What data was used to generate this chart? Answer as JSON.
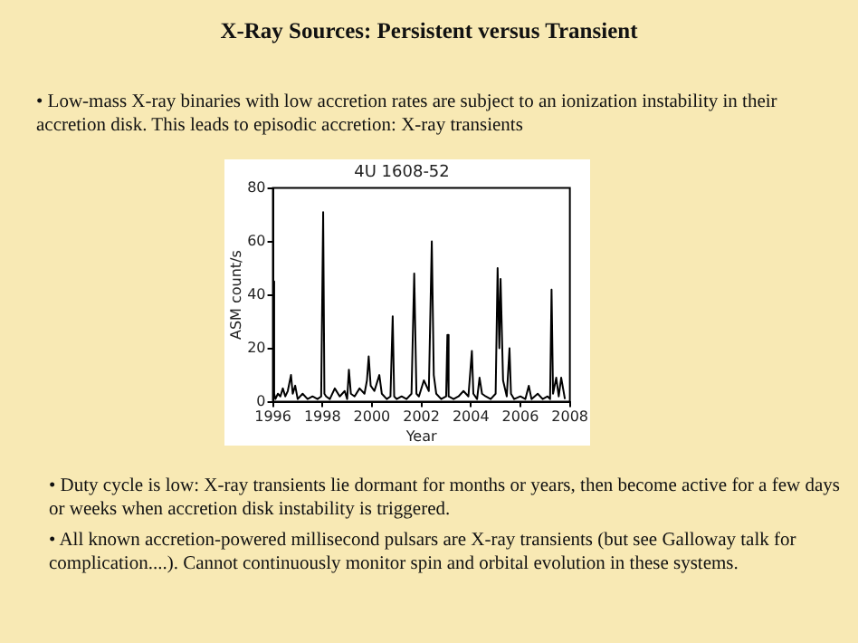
{
  "chart_data": {
    "type": "line",
    "title": "X-Ray Sources: Persistent versus Transient",
    "subtitle": "4U 1608-52",
    "xlabel": "Year",
    "ylabel": "ASM count/s",
    "annotations": [
      "• Low-mass X-ray binaries with low accretion rates are subject to an ionization instability in their accretion disk.   This leads to episodic accretion: X-ray transients",
      "• Duty cycle is low: X-ray transients lie dormant for months or years, then become active for a few days or weeks when accretion disk instability is triggered.",
      "• All known accretion-powered millisecond pulsars are X-ray transients (but see Galloway talk for complication....).    Cannot continuously monitor spin and orbital evolution in these systems."
    ],
    "series": [
      {
        "color": "#000000",
        "x": [
          1996.0,
          1996.02,
          1996.05,
          1996.1,
          1996.2,
          1996.3,
          1996.4,
          1996.5,
          1996.6,
          1996.73,
          1996.8,
          1996.9,
          1997.0,
          1997.2,
          1997.4,
          1997.6,
          1997.8,
          1997.95,
          1998.03,
          1998.08,
          1998.15,
          1998.3,
          1998.5,
          1998.7,
          1998.9,
          1999.0,
          1999.07,
          1999.15,
          1999.3,
          1999.5,
          1999.7,
          1999.8,
          1999.87,
          1999.95,
          2000.1,
          2000.3,
          2000.4,
          2000.6,
          2000.75,
          2000.84,
          2000.9,
          2001.0,
          2001.2,
          2001.4,
          2001.6,
          2001.71,
          2001.8,
          2001.9,
          2002.1,
          2002.3,
          2002.42,
          2002.5,
          2002.6,
          2002.8,
          2003.0,
          2003.05,
          2003.1,
          2003.3,
          2003.5,
          2003.7,
          2003.9,
          2004.04,
          2004.1,
          2004.25,
          2004.35,
          2004.45,
          2004.6,
          2004.8,
          2005.0,
          2005.08,
          2005.15,
          2005.2,
          2005.3,
          2005.45,
          2005.56,
          2005.62,
          2005.75,
          2006.0,
          2006.2,
          2006.34,
          2006.45,
          2006.7,
          2006.9,
          2007.1,
          2007.2,
          2007.26,
          2007.32,
          2007.45,
          2007.55,
          2007.65,
          2007.8
        ],
        "values": [
          2,
          45,
          3,
          1,
          3,
          2,
          5,
          2,
          4,
          10,
          3,
          6,
          1,
          3,
          1,
          2,
          1,
          2,
          71,
          3,
          2,
          1,
          5,
          2,
          4,
          1,
          12,
          3,
          2,
          5,
          3,
          8,
          17,
          6,
          4,
          10,
          3,
          1,
          2,
          32,
          2,
          1,
          2,
          1,
          3,
          48,
          3,
          2,
          8,
          4,
          60,
          10,
          3,
          1,
          2,
          25,
          2,
          1,
          2,
          4,
          2,
          19,
          3,
          1,
          9,
          3,
          2,
          1,
          3,
          50,
          20,
          46,
          8,
          2,
          20,
          3,
          1,
          2,
          1,
          6,
          1,
          3,
          1,
          2,
          1,
          42,
          3,
          9,
          2,
          9,
          1
        ]
      }
    ],
    "xlim": [
      1996,
      2008
    ],
    "xticks": [
      1996,
      1998,
      2000,
      2002,
      2004,
      2006,
      2008
    ],
    "ylim": [
      0,
      80
    ],
    "yticks": [
      0,
      20,
      40,
      60,
      80
    ],
    "grid": false,
    "legend": false,
    "marker": "none",
    "line_style": "solid"
  }
}
